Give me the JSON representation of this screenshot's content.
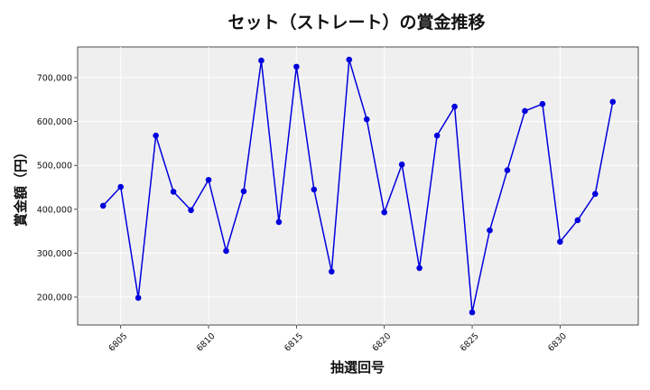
{
  "chart_data": {
    "type": "line",
    "title": "セット（ストレート）の賞金推移",
    "xlabel": "抽選回号",
    "ylabel": "賞金額（円）",
    "x": [
      6804,
      6805,
      6806,
      6807,
      6808,
      6809,
      6810,
      6811,
      6812,
      6813,
      6814,
      6815,
      6816,
      6817,
      6818,
      6819,
      6820,
      6821,
      6822,
      6823,
      6824,
      6825,
      6826,
      6827,
      6828,
      6829,
      6830,
      6831,
      6832,
      6833
    ],
    "series": [
      {
        "values": [
          408000,
          451000,
          198000,
          568000,
          440000,
          398000,
          467000,
          305000,
          441000,
          739000,
          371000,
          725000,
          445000,
          258000,
          741000,
          605000,
          393000,
          502000,
          266000,
          568000,
          634000,
          165000,
          352000,
          489000,
          624000,
          640000,
          326000,
          375000,
          435000,
          645000
        ],
        "color": "#0000dd"
      }
    ],
    "xticks": [
      6805,
      6810,
      6815,
      6820,
      6825,
      6830
    ],
    "xtick_labels": [
      "6805",
      "6810",
      "6815",
      "6820",
      "6825",
      "6830"
    ],
    "yticks": [
      200000,
      300000,
      400000,
      500000,
      600000,
      700000
    ],
    "ytick_labels": [
      "200,000",
      "300,000",
      "400,000",
      "500,000",
      "600,000",
      "700,000"
    ],
    "xlim": [
      6802.55,
      6834.45
    ],
    "ylim": [
      136200,
      770000
    ],
    "grid": true,
    "background": "#efefef"
  }
}
